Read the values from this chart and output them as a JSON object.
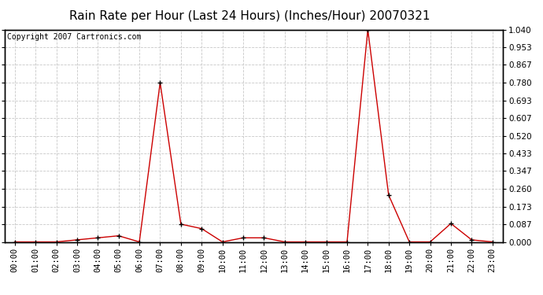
{
  "title": "Rain Rate per Hour (Last 24 Hours) (Inches/Hour) 20070321",
  "copyright": "Copyright 2007 Cartronics.com",
  "x_labels": [
    "00:00",
    "01:00",
    "02:00",
    "03:00",
    "04:00",
    "05:00",
    "06:00",
    "07:00",
    "08:00",
    "09:00",
    "10:00",
    "11:00",
    "12:00",
    "13:00",
    "14:00",
    "15:00",
    "16:00",
    "17:00",
    "18:00",
    "19:00",
    "20:00",
    "21:00",
    "22:00",
    "23:00"
  ],
  "y_values": [
    0.0,
    0.0,
    0.0,
    0.01,
    0.02,
    0.03,
    0.0,
    0.78,
    0.087,
    0.065,
    0.0,
    0.02,
    0.02,
    0.0,
    0.0,
    0.0,
    0.0,
    1.04,
    0.23,
    0.0,
    0.0,
    0.09,
    0.01,
    0.0
  ],
  "line_color": "#cc0000",
  "marker_color": "#000000",
  "bg_color": "#ffffff",
  "plot_bg_color": "#ffffff",
  "grid_color": "#c8c8c8",
  "title_fontsize": 11,
  "copyright_fontsize": 7,
  "tick_fontsize": 7.5,
  "ylim": [
    0.0,
    1.04
  ],
  "y_ticks": [
    0.0,
    0.087,
    0.173,
    0.26,
    0.347,
    0.433,
    0.52,
    0.607,
    0.693,
    0.78,
    0.867,
    0.953,
    1.04
  ]
}
